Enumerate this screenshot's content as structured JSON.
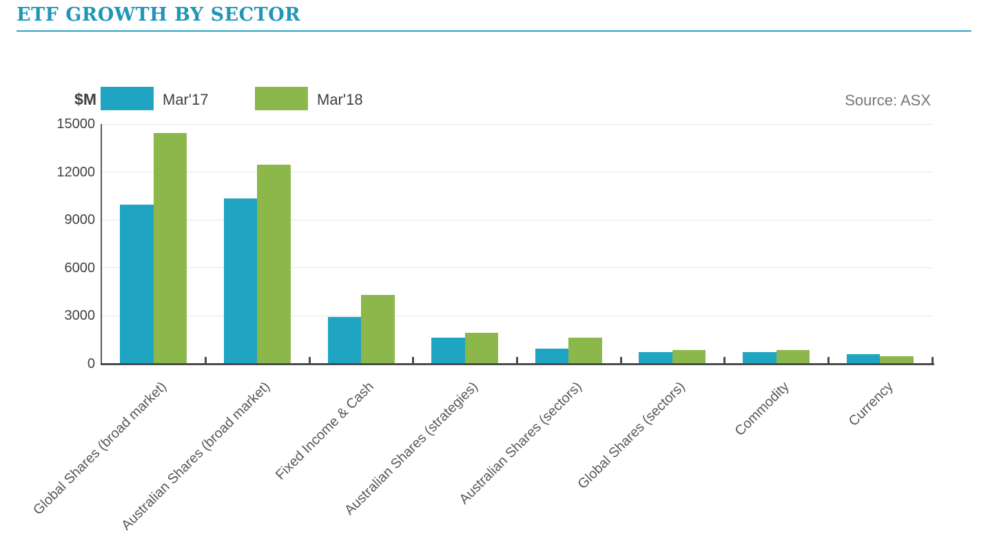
{
  "header": {
    "title": "ETF GROWTH BY SECTOR"
  },
  "chart_data": {
    "type": "bar",
    "title": "ETF GROWTH BY SECTOR",
    "unit_label": "$M",
    "source": "Source: ASX",
    "categories": [
      "Global Shares (broad market)",
      "Australian Shares (broad market)",
      "Fixed Income & Cash",
      "Australian Shares (strategies)",
      "Australian Shares (sectors)",
      "Global Shares (sectors)",
      "Commodity",
      "Currency"
    ],
    "series": [
      {
        "name": "Mar'17",
        "color": "#1FA5C1",
        "values": [
          9950,
          10340,
          2950,
          1650,
          930,
          720,
          720,
          590
        ]
      },
      {
        "name": "Mar'18",
        "color": "#8CB84B",
        "values": [
          14450,
          12450,
          4300,
          1950,
          1640,
          860,
          860,
          480
        ]
      }
    ],
    "ylim": [
      0,
      15000
    ],
    "ytick_step": 3000,
    "yticks": [
      0,
      3000,
      6000,
      9000,
      12000,
      15000
    ],
    "grid": true,
    "legend_position": "top-left"
  },
  "colors": {
    "accent_teal": "#2196B6",
    "bar_mar17": "#1FA5C1",
    "bar_mar18": "#8CB84B",
    "axis_dark": "#4B4B4D",
    "gridline": "#E4E4E5"
  }
}
